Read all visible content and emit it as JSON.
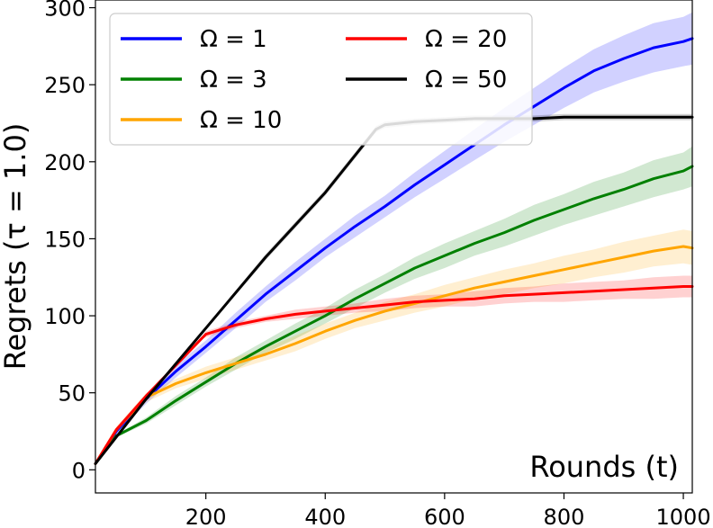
{
  "chart_data": {
    "type": "line",
    "title": "",
    "xlabel": "Rounds (t)",
    "ylabel": "Regrets (τ = 1.0)",
    "xlim": [
      15,
      1015
    ],
    "ylim": [
      -15,
      305
    ],
    "xticks": [
      200,
      400,
      600,
      800,
      1000
    ],
    "yticks": [
      0,
      50,
      100,
      150,
      200,
      250,
      300
    ],
    "grid": false,
    "legend": {
      "placement": "top-left",
      "columns": 2
    },
    "series": [
      {
        "name": "Ω = 1",
        "color": "#0000ff",
        "x": [
          15,
          50,
          100,
          150,
          200,
          250,
          300,
          350,
          400,
          450,
          500,
          550,
          600,
          650,
          700,
          750,
          800,
          850,
          900,
          950,
          1000,
          1015
        ],
        "y": [
          4,
          25,
          46,
          64,
          80,
          97,
          114,
          129,
          144,
          158,
          171,
          185,
          198,
          211,
          224,
          236,
          248,
          259,
          267,
          274,
          278,
          280
        ],
        "band": [
          0,
          2,
          3,
          4,
          4,
          5,
          5,
          6,
          6,
          7,
          7,
          8,
          9,
          10,
          11,
          12,
          13,
          14,
          15,
          16,
          16,
          17
        ]
      },
      {
        "name": "Ω = 3",
        "color": "#008000",
        "x": [
          15,
          50,
          100,
          150,
          200,
          250,
          300,
          350,
          400,
          450,
          500,
          550,
          600,
          650,
          700,
          750,
          800,
          850,
          900,
          950,
          1000,
          1015
        ],
        "y": [
          4,
          22,
          32,
          45,
          57,
          69,
          80,
          90,
          100,
          111,
          121,
          131,
          139,
          147,
          154,
          162,
          169,
          176,
          182,
          189,
          194,
          197
        ],
        "band": [
          0,
          1,
          2,
          3,
          3,
          4,
          4,
          5,
          5,
          6,
          6,
          7,
          8,
          8,
          9,
          10,
          10,
          11,
          11,
          12,
          12,
          13
        ]
      },
      {
        "name": "Ω = 10",
        "color": "#ffa500",
        "x": [
          15,
          50,
          100,
          150,
          200,
          250,
          300,
          350,
          400,
          450,
          500,
          550,
          600,
          650,
          700,
          750,
          800,
          850,
          900,
          950,
          1000,
          1015
        ],
        "y": [
          4,
          26,
          47,
          56,
          63,
          69,
          75,
          82,
          90,
          97,
          103,
          108,
          113,
          118,
          122,
          126,
          130,
          134,
          138,
          142,
          145,
          144
        ],
        "band": [
          0,
          2,
          3,
          3,
          4,
          4,
          4,
          5,
          5,
          5,
          6,
          6,
          7,
          7,
          8,
          8,
          9,
          9,
          10,
          10,
          11,
          11
        ]
      },
      {
        "name": "Ω = 20",
        "color": "#ff0000",
        "x": [
          15,
          50,
          100,
          150,
          195,
          200,
          250,
          300,
          350,
          400,
          450,
          500,
          550,
          600,
          650,
          700,
          750,
          800,
          850,
          900,
          950,
          1000,
          1015
        ],
        "y": [
          4,
          26,
          48,
          68,
          86,
          88,
          94,
          98,
          101,
          103,
          105,
          107,
          109,
          110,
          111,
          113,
          114,
          115,
          116,
          117,
          118,
          119,
          119
        ],
        "band": [
          0,
          1,
          1,
          1,
          1,
          2,
          2,
          2,
          3,
          3,
          3,
          4,
          4,
          4,
          5,
          5,
          5,
          6,
          6,
          6,
          7,
          7,
          7
        ]
      },
      {
        "name": "Ω = 50",
        "color": "#000000",
        "x": [
          15,
          100,
          200,
          300,
          400,
          485,
          500,
          550,
          600,
          650,
          700,
          750,
          800,
          850,
          900,
          950,
          1000,
          1015
        ],
        "y": [
          4,
          46,
          92,
          138,
          180,
          221,
          224,
          226,
          227,
          228,
          228,
          228,
          229,
          229,
          229,
          229,
          229,
          229
        ],
        "band": [
          0,
          1,
          1,
          2,
          2,
          2,
          2,
          2,
          2,
          2,
          2,
          2,
          2,
          2,
          2,
          2,
          2,
          2
        ]
      }
    ]
  }
}
